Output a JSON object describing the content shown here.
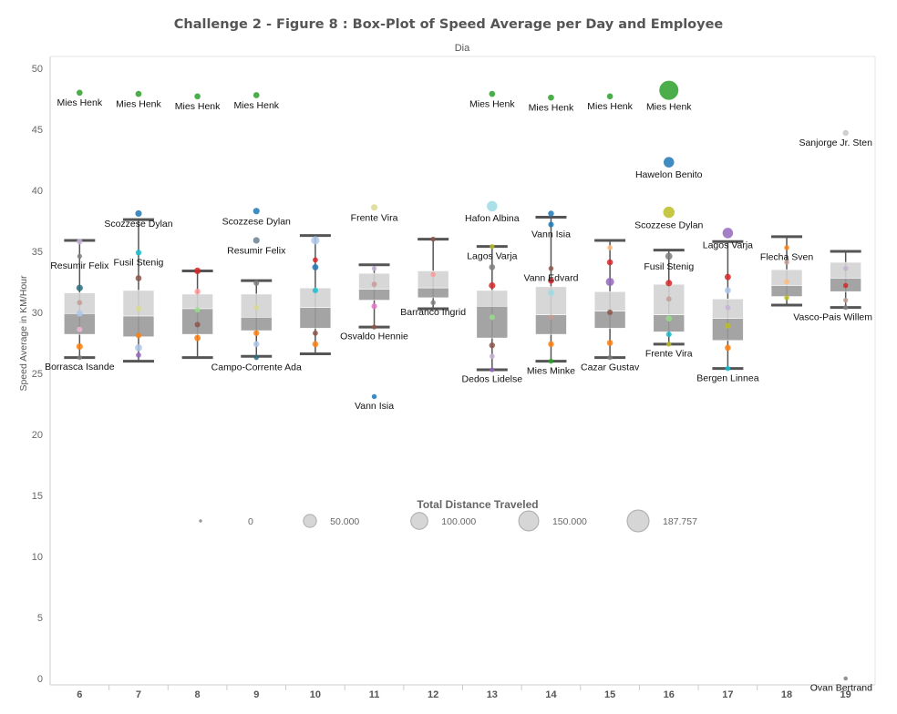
{
  "chart_data": {
    "type": "box-plot",
    "title": "Challenge 2  - Figure 8  : Box-Plot of Speed Average per Day and Employee",
    "column_header": "Dia",
    "ylabel": "Speed Average in KM/Hour",
    "ylim": [
      0,
      51
    ],
    "yticks": [
      0,
      5,
      10,
      15,
      20,
      25,
      30,
      35,
      40,
      45,
      50
    ],
    "categories": [
      "6",
      "7",
      "8",
      "9",
      "10",
      "11",
      "12",
      "13",
      "14",
      "15",
      "16",
      "17",
      "18",
      "19"
    ],
    "grid": false,
    "legend_placement": "center",
    "size_legend": {
      "title": "Total  Distance Traveled",
      "entries": [
        {
          "label": "0",
          "value": 0
        },
        {
          "label": "50.000",
          "value": 50000
        },
        {
          "label": "100.000",
          "value": 100000
        },
        {
          "label": "150.000",
          "value": 150000
        },
        {
          "label": "187.757",
          "value": 187757
        }
      ]
    },
    "boxes": [
      {
        "day": "6",
        "whisker_low": 26.3,
        "q1": 28.2,
        "median": 29.9,
        "q3": 31.6,
        "whisker_high": 35.9
      },
      {
        "day": "7",
        "whisker_low": 26.0,
        "q1": 28.0,
        "median": 29.7,
        "q3": 31.8,
        "whisker_high": 37.6
      },
      {
        "day": "8",
        "whisker_low": 26.3,
        "q1": 28.2,
        "median": 30.3,
        "q3": 31.5,
        "whisker_high": 33.4
      },
      {
        "day": "9",
        "whisker_low": 26.4,
        "q1": 28.5,
        "median": 29.6,
        "q3": 31.5,
        "whisker_high": 32.6
      },
      {
        "day": "10",
        "whisker_low": 26.6,
        "q1": 28.7,
        "median": 30.4,
        "q3": 32.0,
        "whisker_high": 36.3
      },
      {
        "day": "11",
        "whisker_low": 28.8,
        "q1": 31.0,
        "median": 31.9,
        "q3": 33.2,
        "whisker_high": 33.9
      },
      {
        "day": "12",
        "whisker_low": 30.3,
        "q1": 31.2,
        "median": 32.0,
        "q3": 33.4,
        "whisker_high": 36.0
      },
      {
        "day": "13",
        "whisker_low": 25.3,
        "q1": 27.9,
        "median": 30.5,
        "q3": 31.8,
        "whisker_high": 35.4
      },
      {
        "day": "14",
        "whisker_low": 26.0,
        "q1": 28.2,
        "median": 29.8,
        "q3": 32.1,
        "whisker_high": 37.8
      },
      {
        "day": "15",
        "whisker_low": 26.3,
        "q1": 28.7,
        "median": 30.1,
        "q3": 31.7,
        "whisker_high": 35.9
      },
      {
        "day": "16",
        "whisker_low": 27.4,
        "q1": 28.4,
        "median": 29.8,
        "q3": 32.3,
        "whisker_high": 35.1
      },
      {
        "day": "17",
        "whisker_low": 25.4,
        "q1": 27.7,
        "median": 29.5,
        "q3": 31.1,
        "whisker_high": 35.8
      },
      {
        "day": "18",
        "whisker_low": 30.6,
        "q1": 31.3,
        "median": 32.2,
        "q3": 33.5,
        "whisker_high": 36.2
      },
      {
        "day": "19",
        "whisker_low": 30.4,
        "q1": 31.7,
        "median": 32.8,
        "q3": 34.1,
        "whisker_high": 35.0
      }
    ],
    "labeled_points": [
      {
        "day": "6",
        "y": 48.0,
        "label": "Mies Henk",
        "color": "#2ca02c",
        "size": 7000
      },
      {
        "day": "6",
        "y": 34.6,
        "label": "Resumir Felix",
        "color": "#7f7f7f",
        "size": 2500
      },
      {
        "day": "6",
        "y": 26.3,
        "label": "Borrasca Isande",
        "color": "#7f7f7f",
        "size": 2500
      },
      {
        "day": "7",
        "y": 47.9,
        "label": "Mies Henk",
        "color": "#2ca02c",
        "size": 7000
      },
      {
        "day": "7",
        "y": 38.1,
        "label": "Scozzese Dylan",
        "color": "#1f77b4",
        "size": 9000
      },
      {
        "day": "7",
        "y": 34.9,
        "label": "Fusil Stenig",
        "color": "#17becf",
        "size": 6000
      },
      {
        "day": "8",
        "y": 47.7,
        "label": "Mies Henk",
        "color": "#2ca02c",
        "size": 7000
      },
      {
        "day": "9",
        "y": 47.8,
        "label": "Mies Henk",
        "color": "#2ca02c",
        "size": 7000
      },
      {
        "day": "9",
        "y": 38.3,
        "label": "Scozzese Dylan",
        "color": "#1f77b4",
        "size": 9000
      },
      {
        "day": "9",
        "y": 35.9,
        "label": "Resumir Felix",
        "color": "#6b7f8f",
        "size": 9000
      },
      {
        "day": "9",
        "y": 26.3,
        "label": "Campo-Corrente Ada",
        "color": "#2c6d7f",
        "size": 3000
      },
      {
        "day": "11",
        "y": 38.6,
        "label": "Frente Vira",
        "color": "#dbdb8d",
        "size": 9000
      },
      {
        "day": "11",
        "y": 28.8,
        "label": "Osvaldo Hennie",
        "color": "#8c564b",
        "size": 2500
      },
      {
        "day": "11",
        "y": 23.1,
        "label": "Vann Isia",
        "color": "#1f77b4",
        "size": 3000
      },
      {
        "day": "12",
        "y": 30.8,
        "label": "Barranco Ingrid",
        "color": "#7f7f7f",
        "size": 3000
      },
      {
        "day": "13",
        "y": 47.9,
        "label": "Mies Henk",
        "color": "#2ca02c",
        "size": 7000
      },
      {
        "day": "13",
        "y": 38.7,
        "label": "Hafon Albina",
        "color": "#9edae5",
        "size": 40000
      },
      {
        "day": "13",
        "y": 35.4,
        "label": "Lagos Varja",
        "color": "#bcbd22",
        "size": 2500
      },
      {
        "day": "13",
        "y": 25.3,
        "label": "Dedos Lidelse",
        "color": "#9467bd",
        "size": 2500
      },
      {
        "day": "14",
        "y": 47.6,
        "label": "Mies Henk",
        "color": "#2ca02c",
        "size": 7000
      },
      {
        "day": "14",
        "y": 37.2,
        "label": "Vann Isia",
        "color": "#1f77b4",
        "size": 5000
      },
      {
        "day": "14",
        "y": 33.6,
        "label": "Vann Edvard",
        "color": "#8c564b",
        "size": 3000
      },
      {
        "day": "14",
        "y": 26.0,
        "label": "Mies Minke",
        "color": "#2ca02c",
        "size": 3000
      },
      {
        "day": "15",
        "y": 47.7,
        "label": "Mies Henk",
        "color": "#2ca02c",
        "size": 7000
      },
      {
        "day": "15",
        "y": 26.3,
        "label": "Cazar Gustav",
        "color": "#7f7f7f",
        "size": 3000
      },
      {
        "day": "16",
        "y": 48.2,
        "label": "Mies Henk",
        "color": "#2ca02c",
        "size": 187757
      },
      {
        "day": "16",
        "y": 42.3,
        "label": "Hawelon Benito",
        "color": "#1f77b4",
        "size": 40000
      },
      {
        "day": "16",
        "y": 38.2,
        "label": "Scozzese Dylan",
        "color": "#bcbd22",
        "size": 50000
      },
      {
        "day": "16",
        "y": 34.6,
        "label": "Fusil Stenig",
        "color": "#7f7f7f",
        "size": 12000
      },
      {
        "day": "16",
        "y": 27.4,
        "label": "Frente Vira",
        "color": "#bcbd22",
        "size": 3000
      },
      {
        "day": "17",
        "y": 36.5,
        "label": "Lagos Varja",
        "color": "#9467bd",
        "size": 40000
      },
      {
        "day": "17",
        "y": 25.4,
        "label": "Bergen Linnea",
        "color": "#17becf",
        "size": 3000
      },
      {
        "day": "18",
        "y": 35.3,
        "label": "Flecha Sven",
        "color": "#ff7f0e",
        "size": 3000
      },
      {
        "day": "19",
        "y": 44.7,
        "label": "Sanjorge Jr. Sten",
        "color": "#c7c7c7",
        "size": 6000
      },
      {
        "day": "19",
        "y": 30.4,
        "label": "Vasco-Pais Willem",
        "color": "#7f7f7f",
        "size": 2500
      },
      {
        "day": "19",
        "y": 0.0,
        "label": "Ovan Bertrand",
        "color": "#7f7f7f",
        "size": 1000
      }
    ],
    "other_points": [
      {
        "day": "6",
        "y": 32.0,
        "color": "#2c6d7f",
        "size": 9000
      },
      {
        "day": "6",
        "y": 27.2,
        "color": "#ff7f0e",
        "size": 9000
      },
      {
        "day": "6",
        "y": 29.9,
        "color": "#aec7e8",
        "size": 8000
      },
      {
        "day": "6",
        "y": 35.8,
        "color": "#c5b0d5",
        "size": 6000
      },
      {
        "day": "6",
        "y": 28.6,
        "color": "#f7b6d2",
        "size": 5000
      },
      {
        "day": "6",
        "y": 30.8,
        "color": "#c49c94",
        "size": 4000
      },
      {
        "day": "7",
        "y": 27.1,
        "color": "#aec7e8",
        "size": 12000
      },
      {
        "day": "7",
        "y": 32.8,
        "color": "#8c564b",
        "size": 7000
      },
      {
        "day": "7",
        "y": 28.1,
        "color": "#ff7f0e",
        "size": 5000
      },
      {
        "day": "7",
        "y": 30.3,
        "color": "#dbdb8d",
        "size": 6000
      },
      {
        "day": "7",
        "y": 26.5,
        "color": "#9467bd",
        "size": 4000
      },
      {
        "day": "8",
        "y": 33.4,
        "color": "#d62728",
        "size": 10000
      },
      {
        "day": "8",
        "y": 27.9,
        "color": "#ff7f0e",
        "size": 8000
      },
      {
        "day": "8",
        "y": 31.7,
        "color": "#ff9896",
        "size": 6000
      },
      {
        "day": "8",
        "y": 29.0,
        "color": "#8c564b",
        "size": 5000
      },
      {
        "day": "8",
        "y": 30.2,
        "color": "#98df8a",
        "size": 4000
      },
      {
        "day": "9",
        "y": 27.4,
        "color": "#aec7e8",
        "size": 7000
      },
      {
        "day": "9",
        "y": 28.3,
        "color": "#ff7f0e",
        "size": 6000
      },
      {
        "day": "9",
        "y": 32.4,
        "color": "#7f7f7f",
        "size": 5000
      },
      {
        "day": "9",
        "y": 30.4,
        "color": "#dbdb8d",
        "size": 4000
      },
      {
        "day": "10",
        "y": 35.9,
        "color": "#aec7e8",
        "size": 20000
      },
      {
        "day": "10",
        "y": 33.7,
        "color": "#1f77b4",
        "size": 8000
      },
      {
        "day": "10",
        "y": 27.4,
        "color": "#ff7f0e",
        "size": 7000
      },
      {
        "day": "10",
        "y": 31.8,
        "color": "#17becf",
        "size": 5000
      },
      {
        "day": "10",
        "y": 28.3,
        "color": "#8c564b",
        "size": 4000
      },
      {
        "day": "10",
        "y": 34.3,
        "color": "#d62728",
        "size": 4000
      },
      {
        "day": "11",
        "y": 30.5,
        "color": "#e377c2",
        "size": 5000
      },
      {
        "day": "11",
        "y": 32.3,
        "color": "#c49c94",
        "size": 4000
      },
      {
        "day": "11",
        "y": 33.6,
        "color": "#c5b0d5",
        "size": 3000
      },
      {
        "day": "12",
        "y": 36.0,
        "color": "#8c564b",
        "size": 3000
      },
      {
        "day": "12",
        "y": 33.1,
        "color": "#ff9896",
        "size": 3000
      },
      {
        "day": "13",
        "y": 32.2,
        "color": "#d62728",
        "size": 9000
      },
      {
        "day": "13",
        "y": 33.7,
        "color": "#7f7f7f",
        "size": 7000
      },
      {
        "day": "13",
        "y": 27.3,
        "color": "#8c564b",
        "size": 6000
      },
      {
        "day": "13",
        "y": 29.6,
        "color": "#98df8a",
        "size": 5000
      },
      {
        "day": "13",
        "y": 26.4,
        "color": "#c5b0d5",
        "size": 4000
      },
      {
        "day": "14",
        "y": 38.1,
        "color": "#1f77b4",
        "size": 6000
      },
      {
        "day": "14",
        "y": 32.6,
        "color": "#d62728",
        "size": 7000
      },
      {
        "day": "14",
        "y": 27.4,
        "color": "#ff7f0e",
        "size": 6000
      },
      {
        "day": "14",
        "y": 31.6,
        "color": "#9edae5",
        "size": 8000
      },
      {
        "day": "14",
        "y": 29.6,
        "color": "#c49c94",
        "size": 4000
      },
      {
        "day": "15",
        "y": 32.5,
        "color": "#9467bd",
        "size": 20000
      },
      {
        "day": "15",
        "y": 34.1,
        "color": "#d62728",
        "size": 7000
      },
      {
        "day": "15",
        "y": 27.5,
        "color": "#ff7f0e",
        "size": 7000
      },
      {
        "day": "15",
        "y": 30.0,
        "color": "#8c564b",
        "size": 5000
      },
      {
        "day": "15",
        "y": 35.3,
        "color": "#ffbb78",
        "size": 4000
      },
      {
        "day": "16",
        "y": 32.4,
        "color": "#d62728",
        "size": 9000
      },
      {
        "day": "16",
        "y": 29.5,
        "color": "#98df8a",
        "size": 7000
      },
      {
        "day": "16",
        "y": 28.2,
        "color": "#17becf",
        "size": 5000
      },
      {
        "day": "16",
        "y": 31.1,
        "color": "#c49c94",
        "size": 4000
      },
      {
        "day": "17",
        "y": 32.9,
        "color": "#d62728",
        "size": 8000
      },
      {
        "day": "17",
        "y": 31.8,
        "color": "#aec7e8",
        "size": 8000
      },
      {
        "day": "17",
        "y": 27.1,
        "color": "#ff7f0e",
        "size": 7000
      },
      {
        "day": "17",
        "y": 28.9,
        "color": "#bcbd22",
        "size": 5000
      },
      {
        "day": "17",
        "y": 30.4,
        "color": "#c5b0d5",
        "size": 4000
      },
      {
        "day": "18",
        "y": 32.5,
        "color": "#ffbb78",
        "size": 4000
      },
      {
        "day": "18",
        "y": 34.1,
        "color": "#c49c94",
        "size": 3000
      },
      {
        "day": "18",
        "y": 31.2,
        "color": "#bcbd22",
        "size": 3000
      },
      {
        "day": "19",
        "y": 32.2,
        "color": "#d62728",
        "size": 3000
      },
      {
        "day": "19",
        "y": 33.6,
        "color": "#c5b0d5",
        "size": 3000
      },
      {
        "day": "19",
        "y": 31.0,
        "color": "#c49c94",
        "size": 3000
      }
    ],
    "colors": {
      "box_upper": "#d3d3d3",
      "box_lower": "#9a9a9a",
      "whisker": "#555555",
      "legend_circle": "#cccccc",
      "axis": "#cccccc"
    }
  }
}
